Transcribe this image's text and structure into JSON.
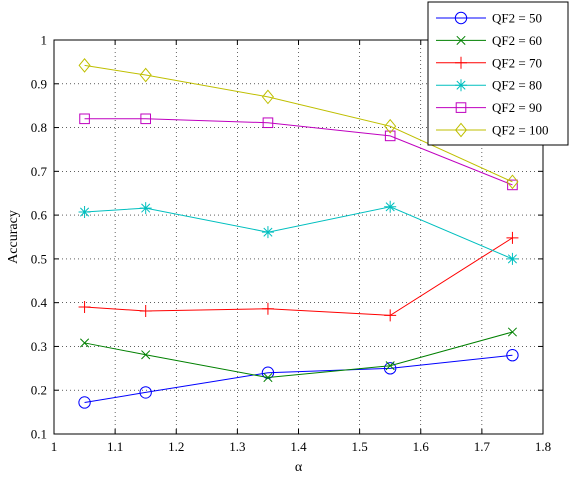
{
  "chart_data": {
    "type": "line",
    "title": "",
    "xlabel": "α",
    "ylabel": "Accuracy",
    "xlim": [
      1,
      1.8
    ],
    "ylim": [
      0.1,
      1
    ],
    "xticks": [
      "1",
      "1.1",
      "1.2",
      "1.3",
      "1.4",
      "1.5",
      "1.6",
      "1.7",
      "1.8"
    ],
    "yticks": [
      "0.1",
      "0.2",
      "0.3",
      "0.4",
      "0.5",
      "0.6",
      "0.7",
      "0.8",
      "0.9",
      "1"
    ],
    "grid": true,
    "grid_style": "dotted",
    "legend_position": "top-right",
    "x": [
      1.05,
      1.15,
      1.35,
      1.55,
      1.75
    ],
    "series": [
      {
        "name": "QF2 = 50",
        "color": "#0000ff",
        "marker": "circle",
        "values": [
          0.172,
          0.195,
          0.24,
          0.25,
          0.28
        ]
      },
      {
        "name": "QF2 = 60",
        "color": "#008000",
        "marker": "x",
        "values": [
          0.308,
          0.281,
          0.229,
          0.256,
          0.333
        ]
      },
      {
        "name": "QF2 = 70",
        "color": "#ff0000",
        "marker": "plus",
        "values": [
          0.39,
          0.381,
          0.386,
          0.371,
          0.548
        ]
      },
      {
        "name": "QF2 = 80",
        "color": "#00bfbf",
        "marker": "asterisk",
        "values": [
          0.607,
          0.616,
          0.561,
          0.619,
          0.5
        ]
      },
      {
        "name": "QF2 = 90",
        "color": "#bf00bf",
        "marker": "square",
        "values": [
          0.82,
          0.82,
          0.811,
          0.781,
          0.669
        ]
      },
      {
        "name": "QF2 = 100",
        "color": "#bfbf00",
        "marker": "diamond",
        "values": [
          0.942,
          0.92,
          0.87,
          0.803,
          0.676
        ]
      }
    ]
  }
}
